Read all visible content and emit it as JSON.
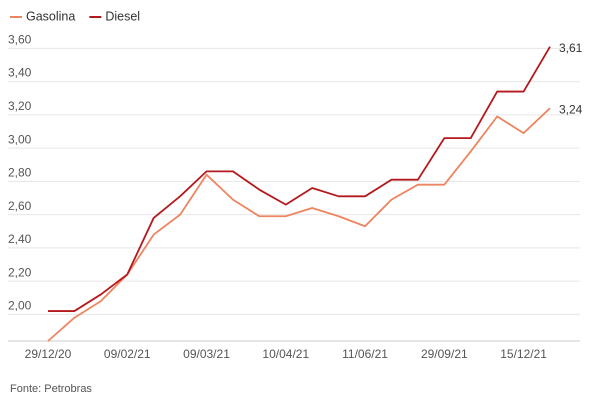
{
  "chart_data": {
    "type": "line",
    "categories": [
      "29/12/20",
      null,
      null,
      "09/02/21",
      null,
      null,
      "09/03/21",
      null,
      null,
      "10/04/21",
      null,
      null,
      "11/06/21",
      null,
      null,
      "29/09/21",
      null,
      null,
      "15/12/21",
      null
    ],
    "series": [
      {
        "name": "Gasolina",
        "color": "#ee8460",
        "values": [
          1.84,
          1.98,
          2.08,
          2.24,
          2.48,
          2.6,
          2.84,
          2.69,
          2.59,
          2.59,
          2.64,
          2.59,
          2.53,
          2.69,
          2.78,
          2.78,
          2.98,
          3.19,
          3.09,
          3.24
        ],
        "value_labels": [
          null,
          null,
          null,
          null,
          null,
          null,
          null,
          null,
          null,
          null,
          null,
          null,
          null,
          null,
          null,
          null,
          null,
          null,
          null,
          "3,24"
        ]
      },
      {
        "name": "Diesel",
        "color": "#b3191d",
        "values": [
          2.02,
          2.02,
          2.12,
          2.24,
          2.58,
          2.71,
          2.86,
          2.86,
          2.75,
          2.66,
          2.76,
          2.71,
          2.71,
          2.81,
          2.81,
          3.06,
          3.06,
          3.34,
          3.34,
          3.61
        ],
        "value_labels": [
          null,
          null,
          null,
          null,
          null,
          null,
          null,
          null,
          null,
          null,
          null,
          null,
          null,
          null,
          null,
          null,
          null,
          null,
          null,
          "3,61"
        ]
      }
    ],
    "ylim": [
      1.84,
      3.65
    ],
    "yticks": [
      {
        "value": 2.0,
        "label": "2,00"
      },
      {
        "value": 2.2,
        "label": "2,20"
      },
      {
        "value": 2.4,
        "label": "2,40"
      },
      {
        "value": 2.6,
        "label": "2,60"
      },
      {
        "value": 2.8,
        "label": "2,80"
      },
      {
        "value": 3.0,
        "label": "3,00"
      },
      {
        "value": 3.2,
        "label": "3,20"
      },
      {
        "value": 3.4,
        "label": "3,40"
      },
      {
        "value": 3.6,
        "label": "3,60"
      }
    ],
    "grid": true,
    "legend": "top-left",
    "source": "Fonte: Petrobras"
  }
}
